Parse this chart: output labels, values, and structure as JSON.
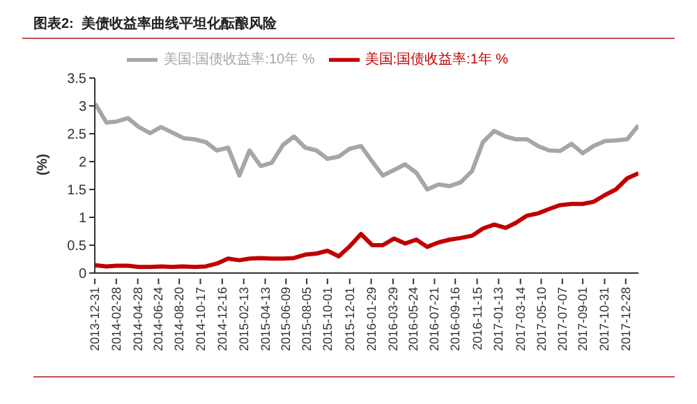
{
  "chart_data": {
    "type": "line",
    "title": "图表2:  美债收益率曲线平坦化酝酿风险",
    "ylabel": "(%)",
    "x": [
      "2014-01-01",
      "2014-02-01",
      "2014-03-01",
      "2014-04-01",
      "2014-05-01",
      "2014-06-01",
      "2014-07-01",
      "2014-08-01",
      "2014-09-01",
      "2014-10-01",
      "2014-11-01",
      "2014-12-01",
      "2015-01-01",
      "2015-02-01",
      "2015-03-01",
      "2015-04-01",
      "2015-05-01",
      "2015-06-01",
      "2015-07-01",
      "2015-08-01",
      "2015-09-01",
      "2015-10-01",
      "2015-11-01",
      "2015-12-01",
      "2016-01-01",
      "2016-02-01",
      "2016-03-01",
      "2016-04-01",
      "2016-05-01",
      "2016-06-01",
      "2016-07-01",
      "2016-08-01",
      "2016-09-01",
      "2016-10-01",
      "2016-11-01",
      "2016-12-01",
      "2017-01-01",
      "2017-02-01",
      "2017-03-01",
      "2017-04-01",
      "2017-05-01",
      "2017-06-01",
      "2017-07-01",
      "2017-08-01",
      "2017-09-01",
      "2017-10-01",
      "2017-11-01",
      "2017-12-01",
      "2018-01-01",
      "2018-02-01"
    ],
    "series": [
      {
        "name": "美国:国债收益率:1年 %",
        "color": "#c00000",
        "values": [
          0.14,
          0.12,
          0.13,
          0.13,
          0.11,
          0.11,
          0.12,
          0.11,
          0.12,
          0.11,
          0.12,
          0.17,
          0.26,
          0.23,
          0.26,
          0.27,
          0.26,
          0.26,
          0.27,
          0.33,
          0.35,
          0.4,
          0.3,
          0.48,
          0.7,
          0.5,
          0.5,
          0.62,
          0.53,
          0.6,
          0.47,
          0.55,
          0.6,
          0.63,
          0.67,
          0.8,
          0.87,
          0.81,
          0.9,
          1.03,
          1.07,
          1.15,
          1.22,
          1.24,
          1.24,
          1.28,
          1.4,
          1.5,
          1.7,
          1.79
        ]
      },
      {
        "name": "美国:国债收益率:10年 %",
        "color": "#a6a6a6",
        "values": [
          3.04,
          2.7,
          2.72,
          2.78,
          2.62,
          2.51,
          2.62,
          2.52,
          2.42,
          2.4,
          2.35,
          2.2,
          2.25,
          1.75,
          2.2,
          1.92,
          1.98,
          2.3,
          2.45,
          2.25,
          2.2,
          2.05,
          2.09,
          2.23,
          2.28,
          2.0,
          1.75,
          1.85,
          1.95,
          1.8,
          1.5,
          1.59,
          1.56,
          1.63,
          1.83,
          2.35,
          2.55,
          2.45,
          2.4,
          2.4,
          2.28,
          2.2,
          2.19,
          2.32,
          2.15,
          2.28,
          2.37,
          2.38,
          2.4,
          2.65
        ]
      }
    ],
    "xlim": [
      "2013-12-31",
      "2018-02-01"
    ],
    "xticks": [
      "2013-12-31",
      "2014-02-28",
      "2014-04-28",
      "2014-06-24",
      "2014-08-20",
      "2014-10-17",
      "2014-12-16",
      "2015-02-13",
      "2015-04-13",
      "2015-06-09",
      "2015-08-05",
      "2015-10-01",
      "2015-12-01",
      "2016-01-29",
      "2016-03-29",
      "2016-05-24",
      "2016-07-21",
      "2016-09-16",
      "2016-11-15",
      "2017-01-13",
      "2017-03-14",
      "2017-05-10",
      "2017-07-07",
      "2017-09-01",
      "2017-10-31",
      "2017-12-28"
    ],
    "ylim": [
      0,
      3.5
    ],
    "yticks": [
      0,
      0.5,
      1,
      1.5,
      2,
      2.5,
      3,
      3.5
    ],
    "grid": false,
    "legend": "top",
    "marker": "none",
    "line_style": "solid"
  }
}
